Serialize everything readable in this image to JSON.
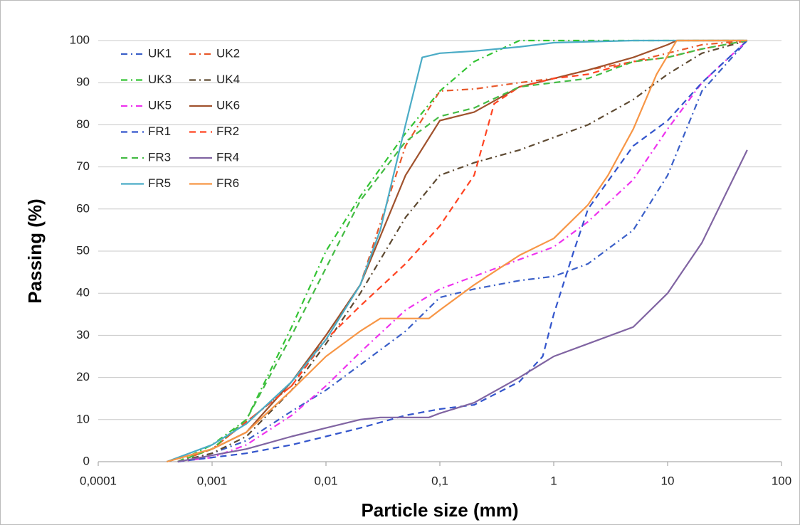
{
  "chart_data": {
    "type": "line",
    "xlabel": "Particle size (mm)",
    "ylabel": "Passing (%)",
    "xscale": "log",
    "xlim": [
      0.0001,
      100
    ],
    "ylim": [
      0,
      100
    ],
    "xticks": [
      {
        "value": 0.0001,
        "label": "0,0001"
      },
      {
        "value": 0.001,
        "label": "0,001"
      },
      {
        "value": 0.01,
        "label": "0,01"
      },
      {
        "value": 0.1,
        "label": "0,1"
      },
      1,
      10,
      100
    ],
    "yticks": [
      0,
      10,
      20,
      30,
      40,
      50,
      60,
      70,
      80,
      90,
      100
    ],
    "grid": true,
    "legend": "upper left",
    "series": [
      {
        "name": "UK1",
        "color": "#3a5fc8",
        "dash": "dashdot",
        "x": [
          0.0005,
          0.001,
          0.002,
          0.005,
          0.01,
          0.02,
          0.05,
          0.1,
          0.2,
          0.5,
          1,
          2,
          5,
          10,
          20,
          50
        ],
        "values": [
          0,
          2,
          5,
          12,
          17,
          23,
          31,
          39,
          41,
          43,
          44,
          47,
          55,
          68,
          88,
          100
        ]
      },
      {
        "name": "UK2",
        "color": "#e8582a",
        "dash": "dashdot",
        "x": [
          0.0005,
          0.001,
          0.005,
          0.01,
          0.02,
          0.05,
          0.1,
          0.2,
          0.5,
          1,
          2,
          5,
          10,
          20,
          50
        ],
        "values": [
          0,
          3,
          18,
          30,
          42,
          75,
          88,
          88.5,
          90,
          91,
          93,
          95,
          97,
          99,
          100
        ]
      },
      {
        "name": "UK3",
        "color": "#33c433",
        "dash": "dashdot",
        "x": [
          0.0005,
          0.001,
          0.002,
          0.005,
          0.01,
          0.02,
          0.05,
          0.1,
          0.2,
          0.5,
          1,
          10,
          50
        ],
        "values": [
          0,
          4,
          10,
          32,
          50,
          63,
          78,
          88,
          95,
          100,
          100,
          100,
          100
        ]
      },
      {
        "name": "UK4",
        "color": "#5e4a32",
        "dash": "dashdot",
        "x": [
          0.0005,
          0.001,
          0.002,
          0.005,
          0.01,
          0.02,
          0.05,
          0.1,
          0.2,
          0.5,
          1,
          2,
          5,
          10,
          20,
          50
        ],
        "values": [
          0,
          2,
          6,
          17,
          28,
          40,
          58,
          68,
          71,
          74,
          77,
          80,
          86,
          92,
          97,
          100
        ]
      },
      {
        "name": "UK5",
        "color": "#ee33ee",
        "dash": "dashdot",
        "x": [
          0.0005,
          0.001,
          0.002,
          0.005,
          0.01,
          0.02,
          0.05,
          0.1,
          0.2,
          0.5,
          1,
          2,
          5,
          10,
          20,
          50
        ],
        "values": [
          0,
          1,
          4,
          11,
          18,
          26,
          36,
          41,
          44,
          48,
          51,
          57,
          67,
          79,
          90,
          100
        ]
      },
      {
        "name": "UK6",
        "color": "#a0522d",
        "dash": "solid",
        "x": [
          0.0004,
          0.001,
          0.002,
          0.005,
          0.01,
          0.02,
          0.05,
          0.1,
          0.2,
          0.5,
          1,
          2,
          5,
          10,
          12,
          50
        ],
        "values": [
          0,
          3,
          7,
          19,
          30,
          42,
          68,
          81,
          83,
          89,
          91,
          93,
          96,
          99,
          100,
          100
        ]
      },
      {
        "name": "FR1",
        "color": "#3355cc",
        "dash": "dash",
        "x": [
          0.0005,
          0.001,
          0.002,
          0.005,
          0.01,
          0.02,
          0.05,
          0.1,
          0.2,
          0.5,
          0.8,
          1,
          1.5,
          2,
          5,
          10,
          20,
          50
        ],
        "values": [
          0,
          1,
          2,
          4,
          6,
          8,
          11,
          12.5,
          13.5,
          19,
          25,
          35,
          50,
          60,
          75,
          81,
          90,
          100
        ]
      },
      {
        "name": "FR2",
        "color": "#ff4422",
        "dash": "dash",
        "x": [
          0.0005,
          0.001,
          0.005,
          0.01,
          0.02,
          0.05,
          0.1,
          0.2,
          0.3,
          0.5,
          1,
          2,
          5,
          10,
          20,
          50
        ],
        "values": [
          0,
          3,
          18,
          29,
          37,
          47,
          56,
          68,
          85,
          89,
          91,
          92,
          95,
          96,
          98,
          100
        ]
      },
      {
        "name": "FR3",
        "color": "#44bb44",
        "dash": "dash",
        "x": [
          0.0005,
          0.001,
          0.002,
          0.005,
          0.01,
          0.02,
          0.05,
          0.1,
          0.2,
          0.5,
          1,
          2,
          5,
          10,
          20,
          50
        ],
        "values": [
          0,
          3,
          10,
          30,
          46,
          62,
          76,
          82,
          84,
          89,
          90,
          91,
          95,
          96,
          98,
          100
        ]
      },
      {
        "name": "FR4",
        "color": "#8064a2",
        "dash": "solid",
        "x": [
          0.0005,
          0.001,
          0.002,
          0.005,
          0.01,
          0.02,
          0.03,
          0.08,
          0.1,
          0.2,
          0.5,
          1,
          2,
          5,
          10,
          20,
          50
        ],
        "values": [
          0,
          1.5,
          3,
          6,
          8,
          10,
          10.5,
          10.5,
          11.5,
          14,
          20,
          25,
          28,
          32,
          40,
          52,
          74
        ]
      },
      {
        "name": "FR5",
        "color": "#4bacc6",
        "dash": "solid",
        "x": [
          0.0004,
          0.001,
          0.002,
          0.005,
          0.01,
          0.02,
          0.03,
          0.05,
          0.07,
          0.1,
          0.2,
          0.5,
          1,
          5,
          50
        ],
        "values": [
          0,
          4,
          9,
          19,
          29,
          42,
          55,
          80,
          96,
          97,
          97.5,
          98.5,
          99.5,
          100,
          100
        ]
      },
      {
        "name": "FR6",
        "color": "#f79646",
        "dash": "solid",
        "x": [
          0.0004,
          0.001,
          0.002,
          0.005,
          0.01,
          0.02,
          0.03,
          0.08,
          0.1,
          0.2,
          0.5,
          1,
          2,
          3,
          5,
          8,
          12,
          50
        ],
        "values": [
          0,
          3,
          7,
          17,
          25,
          31,
          34,
          34,
          36,
          42,
          49,
          53,
          61,
          68,
          79,
          92,
          100,
          100
        ]
      }
    ]
  }
}
